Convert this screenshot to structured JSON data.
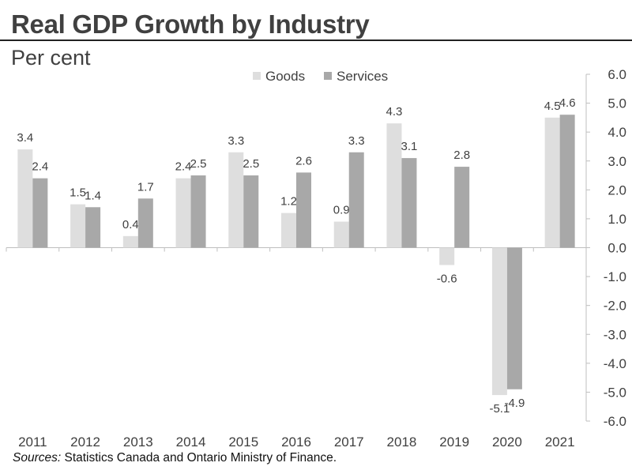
{
  "header": {
    "title": "Real GDP Growth by Industry",
    "subtitle": "Per cent"
  },
  "source": {
    "prefix": "Sources:",
    "text": " Statistics Canada and Ontario Ministry of Finance."
  },
  "chart_data": {
    "type": "bar",
    "title": "Real GDP Growth by Industry",
    "ylabel": "Per cent",
    "xlabel": "",
    "categories": [
      "2011",
      "2012",
      "2013",
      "2014",
      "2015",
      "2016",
      "2017",
      "2018",
      "2019",
      "2020",
      "2021"
    ],
    "series": [
      {
        "name": "Goods",
        "color": "#dedede",
        "values": [
          3.4,
          1.5,
          0.4,
          2.4,
          3.3,
          1.2,
          0.9,
          4.3,
          -0.6,
          -5.1,
          4.5
        ]
      },
      {
        "name": "Services",
        "color": "#a8a8a8",
        "values": [
          2.4,
          1.4,
          1.7,
          2.5,
          2.5,
          2.6,
          3.3,
          3.1,
          2.8,
          -4.9,
          4.6
        ]
      }
    ],
    "ylim": [
      -6.0,
      6.0
    ],
    "yticks": [
      6.0,
      5.0,
      4.0,
      3.0,
      2.0,
      1.0,
      0.0,
      -1.0,
      -2.0,
      -3.0,
      -4.0,
      -5.0,
      -6.0
    ],
    "ytick_labels": [
      "6.0",
      "5.0",
      "4.0",
      "3.0",
      "2.0",
      "1.0",
      "0.0",
      "-1.0",
      "-2.0",
      "-3.0",
      "-4.0",
      "-5.0",
      "-6.0"
    ],
    "y_axis_side": "right",
    "grid": false,
    "legend": "top-center"
  }
}
